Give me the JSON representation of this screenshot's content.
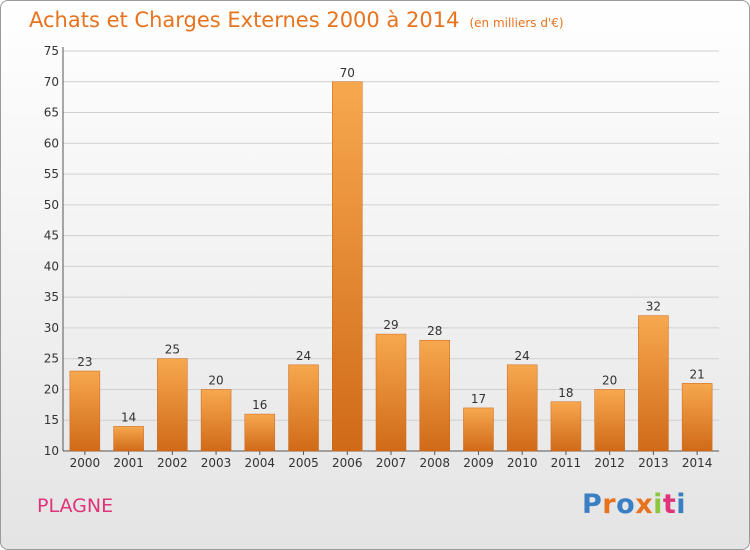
{
  "header": {
    "title": "Achats et Charges Externes 2000 à 2014",
    "unit": "(en milliers d'€)"
  },
  "footer": {
    "commune": "PLAGNE",
    "logo": {
      "letters": [
        "P",
        "r",
        "o",
        "x",
        "i",
        "t",
        "i"
      ],
      "colors": [
        "#3a7ec4",
        "#e8731e",
        "#3a7ec4",
        "#e8731e",
        "#8dc63f",
        "#e0347a",
        "#3a7ec4"
      ]
    }
  },
  "colors": {
    "title": "#e8731e",
    "bar_light": "#f7a84e",
    "bar_dark": "#d06a18",
    "grid": "#d0d0d0",
    "commune": "#e0347a"
  },
  "chart_data": {
    "type": "bar",
    "categories": [
      "2000",
      "2001",
      "2002",
      "2003",
      "2004",
      "2005",
      "2006",
      "2007",
      "2008",
      "2009",
      "2010",
      "2011",
      "2012",
      "2013",
      "2014"
    ],
    "values": [
      23,
      14,
      25,
      20,
      16,
      24,
      70,
      29,
      28,
      17,
      24,
      18,
      20,
      32,
      21
    ],
    "ylim": [
      10,
      75
    ],
    "yticks": [
      10,
      15,
      20,
      25,
      30,
      35,
      40,
      45,
      50,
      55,
      60,
      65,
      70,
      75
    ],
    "grid": true,
    "data_labels": true
  }
}
